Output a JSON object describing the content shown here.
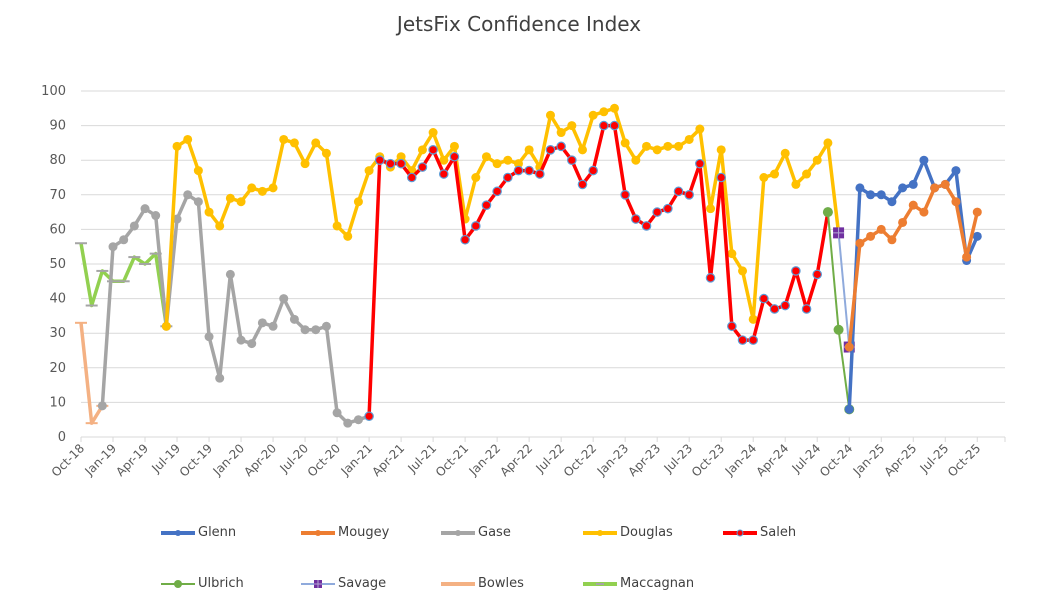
{
  "chart_data": {
    "type": "line",
    "title": "JetsFix Confidence Index",
    "xlabel": "",
    "ylabel": "",
    "ylim": [
      0,
      100
    ],
    "yticks": [
      0,
      10,
      20,
      30,
      40,
      50,
      60,
      70,
      80,
      90,
      100
    ],
    "grid": true,
    "legend_position": "bottom",
    "x_months": [
      "Oct-18",
      "Nov-18",
      "Dec-18",
      "Jan-19",
      "Feb-19",
      "Mar-19",
      "Apr-19",
      "May-19",
      "Jun-19",
      "Jul-19",
      "Aug-19",
      "Sep-19",
      "Oct-19",
      "Nov-19",
      "Dec-19",
      "Jan-20",
      "Feb-20",
      "Mar-20",
      "Apr-20",
      "May-20",
      "Jun-20",
      "Jul-20",
      "Aug-20",
      "Sep-20",
      "Oct-20",
      "Nov-20",
      "Dec-20",
      "Jan-21",
      "Feb-21",
      "Mar-21",
      "Apr-21",
      "May-21",
      "Jun-21",
      "Jul-21",
      "Aug-21",
      "Sep-21",
      "Oct-21",
      "Nov-21",
      "Dec-21",
      "Jan-22",
      "Feb-22",
      "Mar-22",
      "Apr-22",
      "May-22",
      "Jun-22",
      "Jul-22",
      "Aug-22",
      "Sep-22",
      "Oct-22",
      "Nov-22",
      "Dec-22",
      "Jan-23",
      "Feb-23",
      "Mar-23",
      "Apr-23",
      "May-23",
      "Jun-23",
      "Jul-23",
      "Aug-23",
      "Sep-23",
      "Oct-23",
      "Nov-23",
      "Dec-23",
      "Jan-24",
      "Feb-24",
      "Mar-24",
      "Apr-24",
      "May-24",
      "Jun-24",
      "Jul-24",
      "Aug-24",
      "Sep-24",
      "Oct-24",
      "Nov-24",
      "Dec-24",
      "Jan-25",
      "Feb-25",
      "Mar-25",
      "Apr-25",
      "May-25",
      "Jun-25",
      "Jul-25",
      "Aug-25",
      "Sep-25",
      "Oct-25"
    ],
    "xtick_labels": [
      "Oct-18",
      "Jan-19",
      "Apr-19",
      "Jul-19",
      "Oct-19",
      "Jan-20",
      "Apr-20",
      "Jul-20",
      "Oct-20",
      "Jan-21",
      "Apr-21",
      "Jul-21",
      "Oct-21",
      "Jan-22",
      "Apr-22",
      "Jul-22",
      "Oct-22",
      "Jan-23",
      "Apr-23",
      "Jul-23",
      "Oct-23",
      "Jan-24",
      "Apr-24",
      "Jul-24",
      "Oct-24",
      "Jan-25",
      "Apr-25",
      "Jul-25",
      "Oct-25"
    ],
    "series": [
      {
        "name": "Glenn",
        "color": "#4472C4",
        "marker": "circle",
        "start": "Oct-24",
        "values": [
          8,
          72,
          70,
          70,
          68,
          72,
          73,
          80,
          72,
          73,
          77,
          51,
          58
        ]
      },
      {
        "name": "Mougey",
        "color": "#ED7D31",
        "marker": "circle",
        "start": "Oct-24",
        "values": [
          26,
          56,
          58,
          60,
          57,
          62,
          67,
          65,
          72,
          73,
          68,
          52,
          65
        ]
      },
      {
        "name": "Gase",
        "color": "#A5A5A5",
        "marker": "circle",
        "start": "Dec-18",
        "values": [
          9,
          55,
          57,
          61,
          66,
          64,
          32,
          63,
          70,
          68,
          29,
          17,
          47,
          28,
          27,
          33,
          32,
          40,
          34,
          31,
          31,
          32,
          7,
          4,
          5,
          6
        ]
      },
      {
        "name": "Douglas",
        "color": "#FFC000",
        "marker": "circle",
        "start": "Jun-19",
        "values": [
          32,
          84,
          86,
          77,
          65,
          61,
          69,
          68,
          72,
          71,
          72,
          86,
          85,
          79,
          85,
          82,
          61,
          58,
          68,
          77,
          81,
          78,
          81,
          77,
          83,
          88,
          80,
          84,
          63,
          75,
          81,
          79,
          80,
          79,
          83,
          78,
          93,
          88,
          90,
          83,
          93,
          94,
          95,
          85,
          80,
          84,
          83,
          84,
          84,
          86,
          89,
          66,
          83,
          53,
          48,
          34,
          75,
          76,
          82,
          73,
          76,
          80,
          85,
          59
        ]
      },
      {
        "name": "Saleh",
        "color": "#FF0000",
        "marker": "circle-outlined",
        "start": "Jan-21",
        "values": [
          6,
          80,
          79,
          79,
          75,
          78,
          83,
          76,
          81,
          57,
          61,
          67,
          71,
          75,
          77,
          77,
          76,
          83,
          84,
          80,
          73,
          77,
          90,
          90,
          70,
          63,
          61,
          65,
          66,
          71,
          70,
          79,
          46,
          75,
          32,
          28,
          28,
          40,
          37,
          38,
          48,
          37,
          47,
          65
        ]
      },
      {
        "name": "Ulbrich",
        "color": "#70AD47",
        "marker": "circle",
        "start": "Aug-24",
        "values": [
          65,
          31,
          8
        ]
      },
      {
        "name": "Savage",
        "color": "#8FAADC",
        "marker": "square-plus",
        "start": "Sep-24",
        "values": [
          59,
          26
        ]
      },
      {
        "name": "Bowles",
        "color": "#F4B183",
        "marker": "dash",
        "start": "Oct-18",
        "values": [
          33,
          4,
          9
        ]
      },
      {
        "name": "Maccagnan",
        "color": "#92D050",
        "marker": "dash",
        "start": "Oct-18",
        "values": [
          56,
          38,
          48,
          45,
          45,
          52,
          50,
          53,
          32
        ]
      }
    ]
  }
}
